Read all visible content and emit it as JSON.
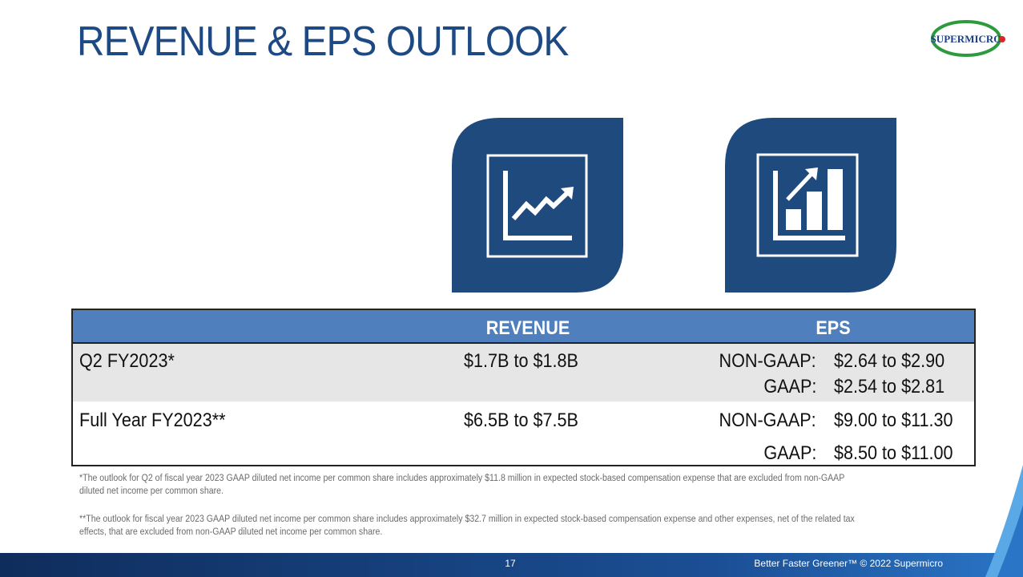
{
  "header": {
    "title": "REVENUE & EPS OUTLOOK",
    "logo": "SUPERMICRO"
  },
  "table": {
    "headers": [
      "REVENUE",
      "EPS"
    ],
    "rows": [
      {
        "label": "Q2 FY2023*",
        "revenue": "$1.7B to $1.8B",
        "eps": [
          [
            "NON-GAAP:",
            "$2.64 to $2.90"
          ],
          [
            "GAAP:",
            "$2.54 to $2.81"
          ]
        ]
      },
      {
        "label": "Full Year FY2023**",
        "revenue": "$6.5B to $7.5B",
        "eps": [
          [
            "NON-GAAP:",
            "$9.00 to $11.30"
          ],
          [
            "GAAP:",
            "$8.50 to $11.00"
          ]
        ]
      }
    ]
  },
  "footnotes": [
    "*The outlook for Q2 of fiscal year 2023 GAAP diluted net income per common share includes approximately $11.8 million in expected stock-based compensation expense that are excluded from non-GAAP diluted net income per common share.",
    "**The outlook for fiscal year 2023 GAAP diluted net income per common share includes approximately $32.7 million in expected stock-based compensation expense and other expenses, net of the related tax effects, that are excluded from non-GAAP diluted net income per common share."
  ],
  "footer": {
    "page": "17",
    "tagline": "Better Faster Greener™ © 2022 Supermicro"
  }
}
